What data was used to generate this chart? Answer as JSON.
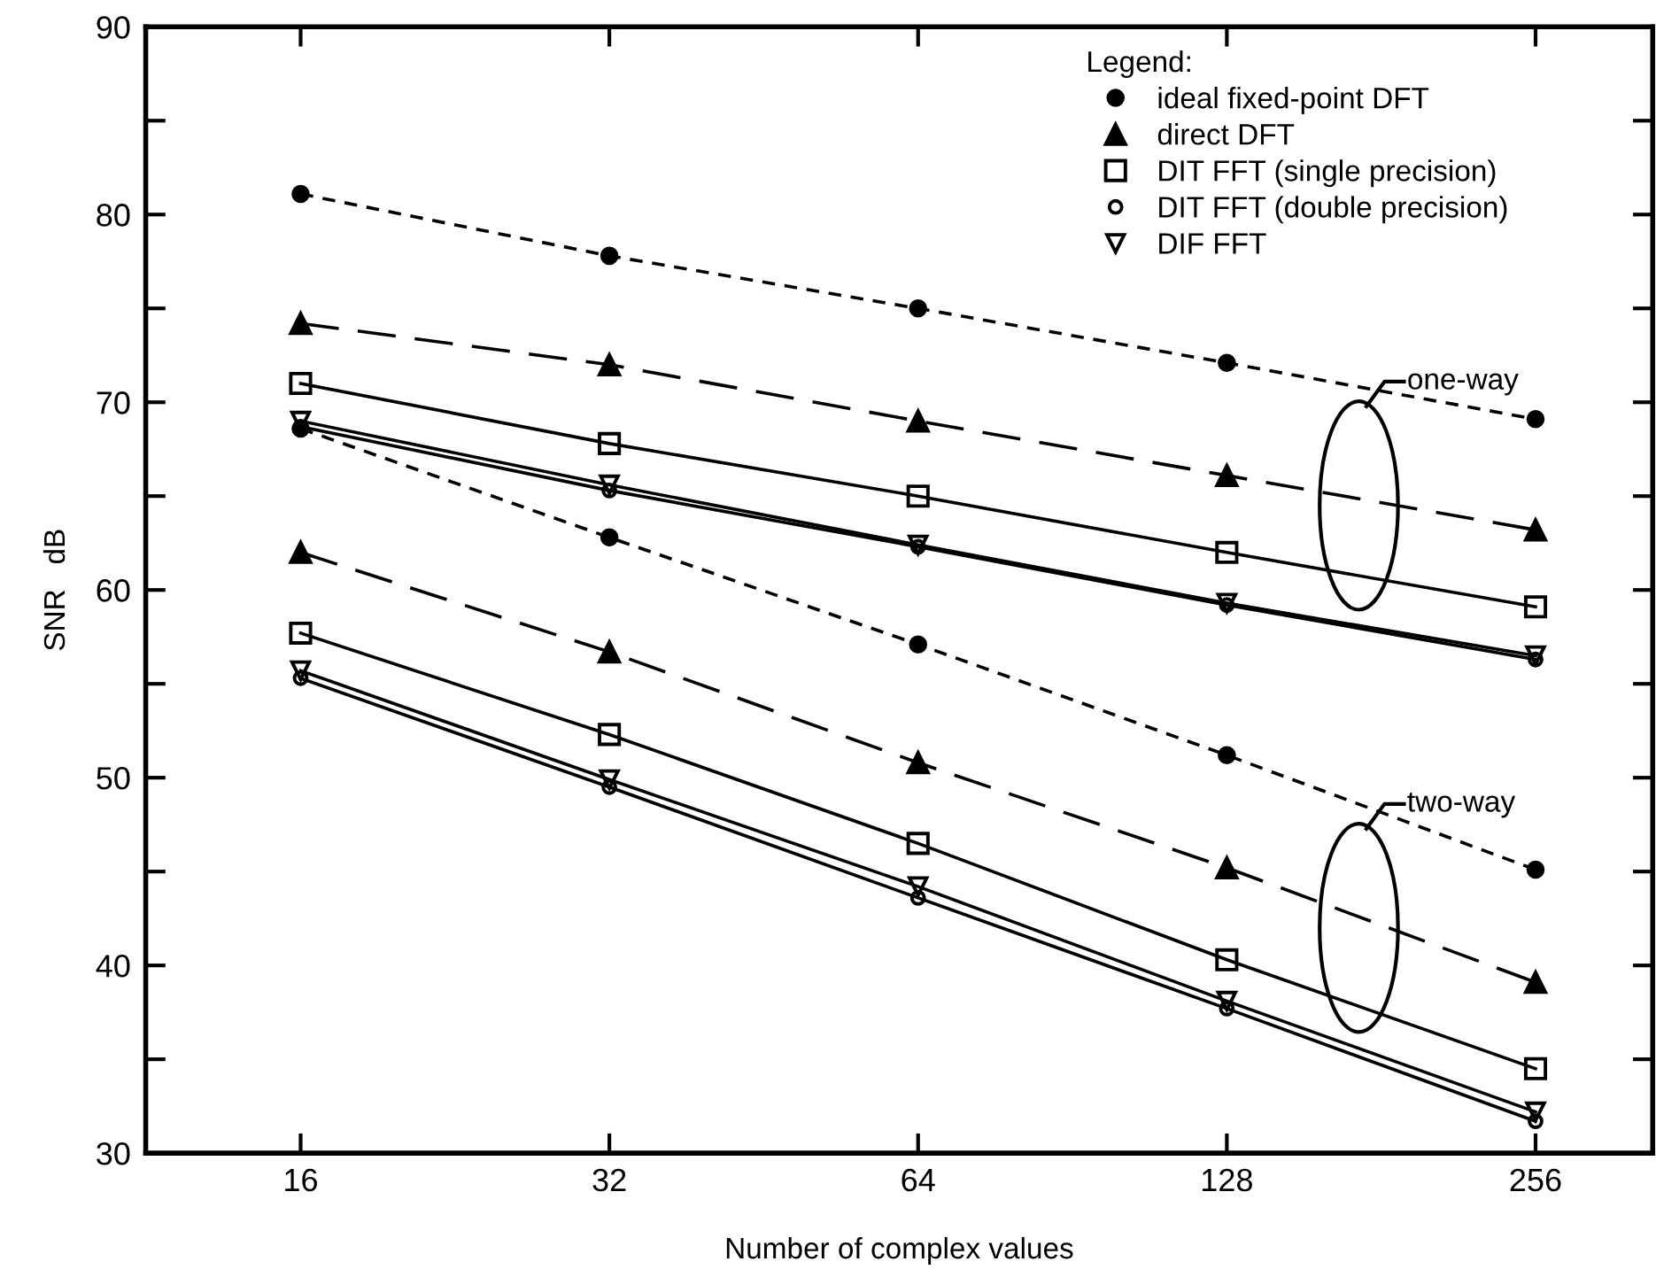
{
  "chart_data": {
    "type": "line",
    "xlabel": "Number of complex values",
    "ylabel": "SNR   dB",
    "log": "x",
    "x": [
      16,
      32,
      64,
      128,
      256
    ],
    "xlim": [
      11.3,
      333
    ],
    "xticks": [
      16,
      32,
      64,
      128,
      256
    ],
    "ylim": [
      30,
      90
    ],
    "yticks": [
      30,
      {
        "value": 35,
        "label": null
      },
      40,
      {
        "value": 45,
        "label": null
      },
      50,
      {
        "value": 55,
        "label": null
      },
      60,
      {
        "value": 65,
        "label": null
      },
      70,
      {
        "value": 75,
        "label": null
      },
      80,
      {
        "value": 85,
        "label": null
      },
      90
    ],
    "grid": false,
    "legend": "top right",
    "legend_title": "Legend:",
    "series": [
      {
        "name": "ideal fixed-point DFT",
        "color": "#000000",
        "marker": "circle",
        "line_style": "dotted",
        "values": [
          81.1,
          77.8,
          75.0,
          72.1,
          69.1
        ]
      },
      {
        "name": "direct DFT",
        "color": "#000000",
        "marker": "triangle",
        "line_style": "dashed",
        "values": [
          74.2,
          72.0,
          69.0,
          66.1,
          63.2
        ]
      },
      {
        "name": "DIT FFT (single precision)",
        "color": "#000000",
        "marker": "square-open",
        "line_style": "solid",
        "values": [
          71.0,
          67.8,
          65.0,
          62.0,
          59.1
        ]
      },
      {
        "name": "DIT FFT (double precision)",
        "color": "#000000",
        "marker": "circle-open",
        "line_style": "solid",
        "values": [
          68.7,
          65.3,
          62.3,
          59.2,
          56.3
        ]
      },
      {
        "name": "DIF FFT",
        "color": "#000000",
        "marker": "triangle-down-open",
        "line_style": "solid",
        "values": [
          69.0,
          65.6,
          62.4,
          59.3,
          56.5
        ]
      },
      {
        "color": "#000000",
        "marker": "circle",
        "line_style": "dotted",
        "values": [
          68.6,
          62.8,
          57.1,
          51.2,
          45.1
        ]
      },
      {
        "color": "#000000",
        "marker": "triangle",
        "line_style": "dashed",
        "values": [
          62.0,
          56.7,
          50.8,
          45.2,
          39.1
        ]
      },
      {
        "color": "#000000",
        "marker": "square-open",
        "line_style": "solid",
        "values": [
          57.7,
          52.3,
          46.5,
          40.3,
          34.5
        ]
      },
      {
        "color": "#000000",
        "marker": "circle-open",
        "line_style": "solid",
        "values": [
          55.3,
          49.5,
          43.6,
          37.7,
          31.7
        ]
      },
      {
        "color": "#000000",
        "marker": "triangle-down-open",
        "line_style": "solid",
        "values": [
          55.7,
          49.9,
          44.2,
          38.1,
          32.2
        ]
      }
    ],
    "annotations": [
      "one-way",
      "two-way"
    ]
  }
}
